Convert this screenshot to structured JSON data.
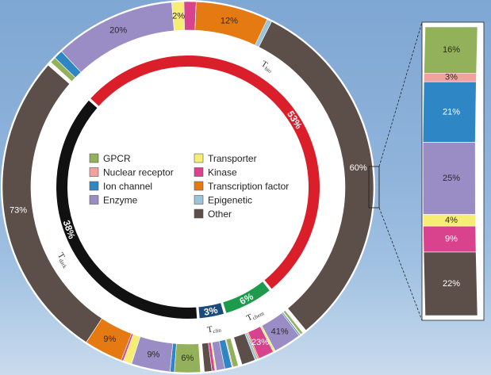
{
  "chart_data": [
    {
      "type": "pie",
      "categories": [
        "GPCR",
        "Nuclear receptor",
        "Ion channel",
        "Enzyme",
        "Transporter",
        "Kinase",
        "Transcription factor",
        "Epigenetic",
        "Other"
      ],
      "colors": {
        "GPCR": "#93b05a",
        "Nuclear receptor": "#f2a29d",
        "Ion channel": "#2e86c4",
        "Enzyme": "#9a8cc4",
        "Transporter": "#f6ee74",
        "Kinase": "#d9428c",
        "Transcription factor": "#e67a12",
        "Epigenetic": "#9cc3d9",
        "Other": "#5c4e48"
      },
      "inner_ring": {
        "series": [
          {
            "name": "Tbio",
            "value": 53,
            "color": "#da1f2b",
            "label": "53%"
          },
          {
            "name": "Tchem",
            "value": 6,
            "color": "#1d9a4c",
            "label": "6%"
          },
          {
            "name": "Tclin",
            "value": 3,
            "color": "#1b4a7c",
            "label": "3%"
          },
          {
            "name": "Tdark",
            "value": 38,
            "color": "#111111",
            "label": "38%"
          }
        ],
        "tags": [
          {
            "main": "T",
            "sub": "bio"
          },
          {
            "main": "T",
            "sub": "chem"
          },
          {
            "main": "T",
            "sub": "clin"
          },
          {
            "main": "T",
            "sub": "dark"
          }
        ]
      },
      "outer_ring": {
        "Tbio": [
          {
            "category": "GPCR",
            "value": 1
          },
          {
            "category": "Ion channel",
            "value": 1.5
          },
          {
            "category": "Enzyme",
            "value": 20,
            "label": "20%"
          },
          {
            "category": "Transporter",
            "value": 2,
            "label": "2%"
          },
          {
            "category": "Kinase",
            "value": 2
          },
          {
            "category": "Transcription factor",
            "value": 12,
            "label": "12%"
          },
          {
            "category": "Epigenetic",
            "value": 0.8
          },
          {
            "category": "Other",
            "value": 60,
            "label": "60%"
          }
        ],
        "Tchem": [
          {
            "category": "GPCR",
            "value": 4
          },
          {
            "category": "Nuclear receptor",
            "value": 1
          },
          {
            "category": "Ion channel",
            "value": 2
          },
          {
            "category": "Enzyme",
            "value": 41,
            "label": "41%"
          },
          {
            "category": "Transporter",
            "value": 3
          },
          {
            "category": "Kinase",
            "value": 23,
            "label": "23%"
          },
          {
            "category": "Transcription factor",
            "value": 2
          },
          {
            "category": "Epigenetic",
            "value": 4
          },
          {
            "category": "Other",
            "value": 20
          }
        ],
        "Tclin": [
          {
            "category": "GPCR",
            "value": 16
          },
          {
            "category": "Nuclear receptor",
            "value": 3
          },
          {
            "category": "Ion channel",
            "value": 21
          },
          {
            "category": "Enzyme",
            "value": 25
          },
          {
            "category": "Transporter",
            "value": 4
          },
          {
            "category": "Kinase",
            "value": 9
          },
          {
            "category": "Other",
            "value": 22
          }
        ],
        "Tdark": [
          {
            "category": "GPCR",
            "value": 6,
            "label": "6%"
          },
          {
            "category": "Ion channel",
            "value": 1
          },
          {
            "category": "Enzyme",
            "value": 9,
            "label": "9%"
          },
          {
            "category": "Transporter",
            "value": 2
          },
          {
            "category": "Kinase",
            "value": 0.5
          },
          {
            "category": "Transcription factor",
            "value": 9,
            "label": "9%"
          },
          {
            "category": "Other",
            "value": 72.5,
            "label": "73%"
          }
        ]
      },
      "legend": {
        "placement": "center",
        "items": [
          "GPCR",
          "Nuclear receptor",
          "Ion channel",
          "Enzyme",
          "Transporter",
          "Kinase",
          "Transcription factor",
          "Epigenetic",
          "Other"
        ]
      }
    },
    {
      "type": "bar",
      "stacked": true,
      "title": "",
      "series": [
        {
          "category": "GPCR",
          "value": 16,
          "label": "16%"
        },
        {
          "category": "Nuclear receptor",
          "value": 3,
          "label": "3%"
        },
        {
          "category": "Ion channel",
          "value": 21,
          "label": "21%"
        },
        {
          "category": "Enzyme",
          "value": 25,
          "label": "25%"
        },
        {
          "category": "Transporter",
          "value": 4,
          "label": "4%"
        },
        {
          "category": "Kinase",
          "value": 9,
          "label": "9%"
        },
        {
          "category": "Other",
          "value": 22,
          "label": "22%"
        }
      ]
    }
  ]
}
